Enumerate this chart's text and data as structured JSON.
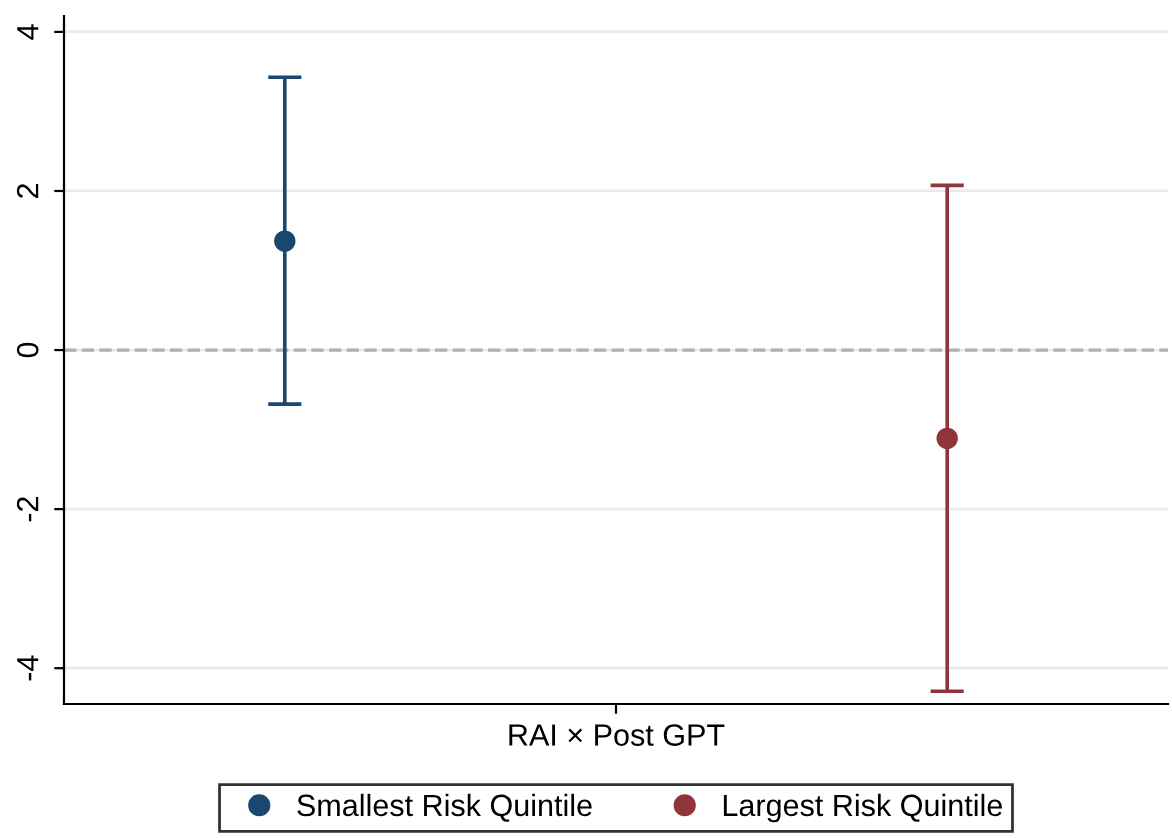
{
  "chart_data": {
    "type": "scatter",
    "categories": [
      "RAI × Post GPT"
    ],
    "series": [
      {
        "name": "Smallest Risk Quintile",
        "color": "#1a476f",
        "values": [
          1.37
        ],
        "errors": [
          [
            -0.68,
            3.43
          ]
        ]
      },
      {
        "name": "Largest Risk Quintile",
        "color": "#90353b",
        "values": [
          -1.11
        ],
        "errors": [
          [
            -4.29,
            2.07
          ]
        ]
      }
    ],
    "ylim": [
      -4.45,
      4.2
    ],
    "yticks": [
      -4,
      -2,
      0,
      2,
      4
    ],
    "grid": "y",
    "legend": "bottom",
    "marker": "circle",
    "ref_lines": [
      {
        "axis": "y",
        "value": 0,
        "color": "#b0b0b0",
        "line_style": "dashed"
      }
    ]
  }
}
